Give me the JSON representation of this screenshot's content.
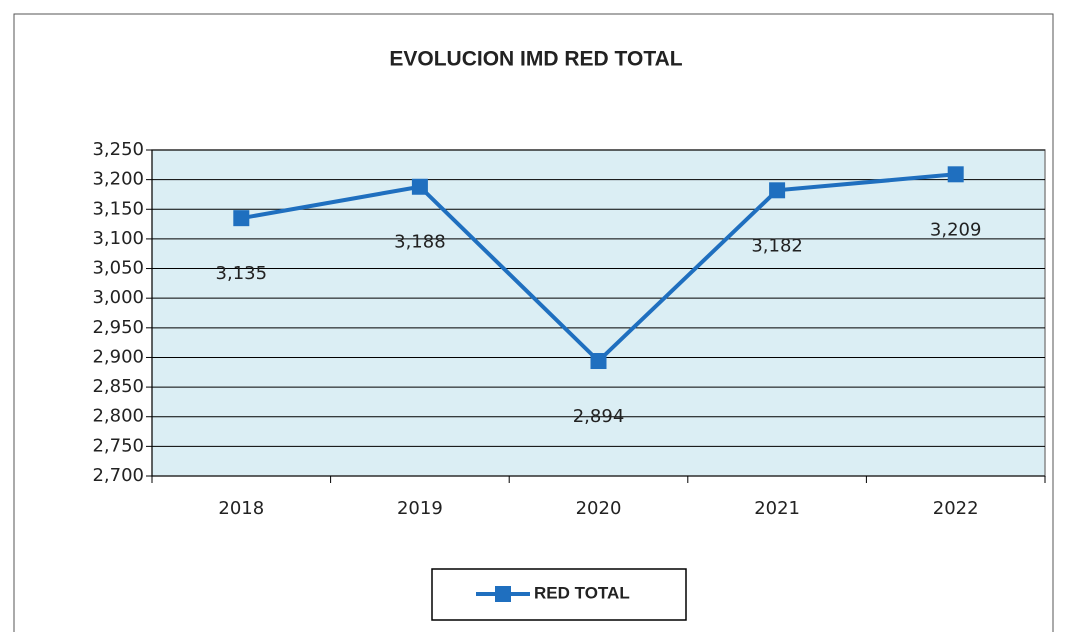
{
  "chart_data": {
    "type": "line",
    "title": "EVOLUCION IMD RED TOTAL",
    "categories": [
      "2018",
      "2019",
      "2020",
      "2021",
      "2022"
    ],
    "series": [
      {
        "name": "RED TOTAL",
        "color": "#1f6fbf",
        "values": [
          3135,
          3188,
          2894,
          3182,
          3209
        ],
        "value_labels": [
          "3,135",
          "3,188",
          "2,894",
          "3,182",
          "3,209"
        ]
      }
    ],
    "ylim": [
      2700,
      3250
    ],
    "yticks": [
      {
        "value": 2700,
        "label": "2,700"
      },
      {
        "value": 2750,
        "label": "2,750"
      },
      {
        "value": 2800,
        "label": "2,800"
      },
      {
        "value": 2850,
        "label": "2,850"
      },
      {
        "value": 2900,
        "label": "2,900"
      },
      {
        "value": 2950,
        "label": "2,950"
      },
      {
        "value": 3000,
        "label": "3,000"
      },
      {
        "value": 3050,
        "label": "3,050"
      },
      {
        "value": 3100,
        "label": "3,100"
      },
      {
        "value": 3150,
        "label": "3,150"
      },
      {
        "value": 3200,
        "label": "3,200"
      },
      {
        "value": 3250,
        "label": "3,250"
      }
    ],
    "grid": true
  }
}
